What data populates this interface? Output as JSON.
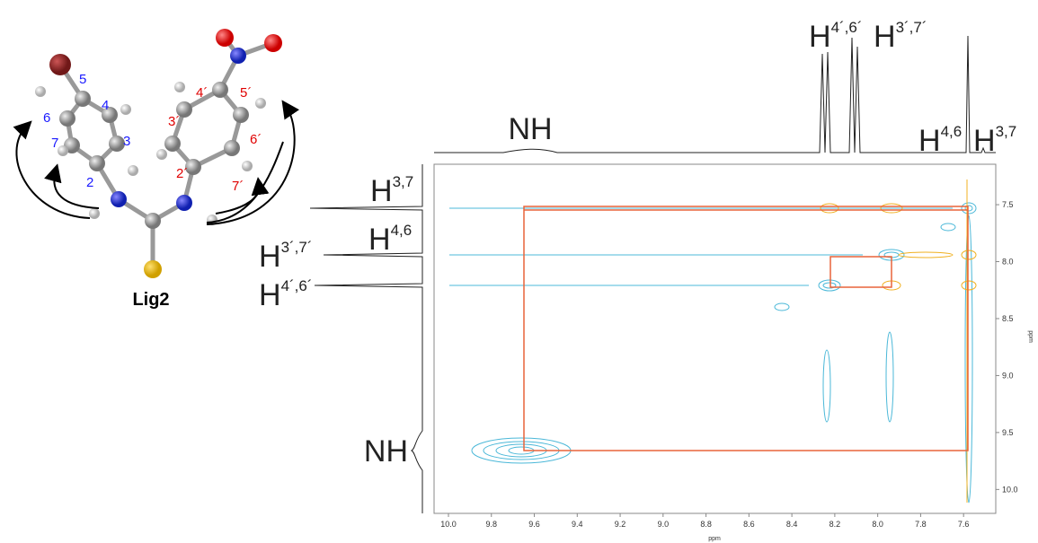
{
  "molecule": {
    "name": "Lig2",
    "ring_a_labels": [
      "5",
      "4",
      "6",
      "3",
      "7",
      "2"
    ],
    "ring_b_labels": [
      "4´",
      "5´",
      "3´",
      "6´",
      "2´",
      "7´"
    ]
  },
  "spectrum": {
    "x_axis_label": "ppm",
    "y_axis_label": "ppm",
    "x_ticks": [
      {
        "value": 10.0,
        "label": "10.0"
      },
      9.8,
      9.6,
      9.4,
      9.2,
      {
        "value": 9.0,
        "label": "9.0"
      },
      8.8,
      8.6,
      8.4,
      8.2,
      {
        "value": 8.0,
        "label": "8.0"
      },
      7.8,
      7.6
    ],
    "y_ticks": [
      7.5,
      {
        "value": 8.0,
        "label": "8.0"
      },
      8.5,
      {
        "value": 9.0,
        "label": "9.0"
      },
      9.5,
      {
        "value": 10.0,
        "label": "10.0"
      }
    ],
    "top_labels": [
      "NH",
      {
        "base": "H",
        "sup": "4´,6´"
      },
      {
        "base": "H",
        "sup": "3´,7´"
      },
      {
        "base": "H",
        "sup": "4,6"
      },
      {
        "base": "H",
        "sup": "3,7"
      }
    ],
    "left_labels": [
      {
        "base": "H",
        "sup": "3,7"
      },
      {
        "base": "H",
        "sup": "4,6"
      },
      {
        "base": "H",
        "sup": "3´,7´"
      },
      {
        "base": "H",
        "sup": "4´,6´"
      },
      "NH"
    ]
  }
}
